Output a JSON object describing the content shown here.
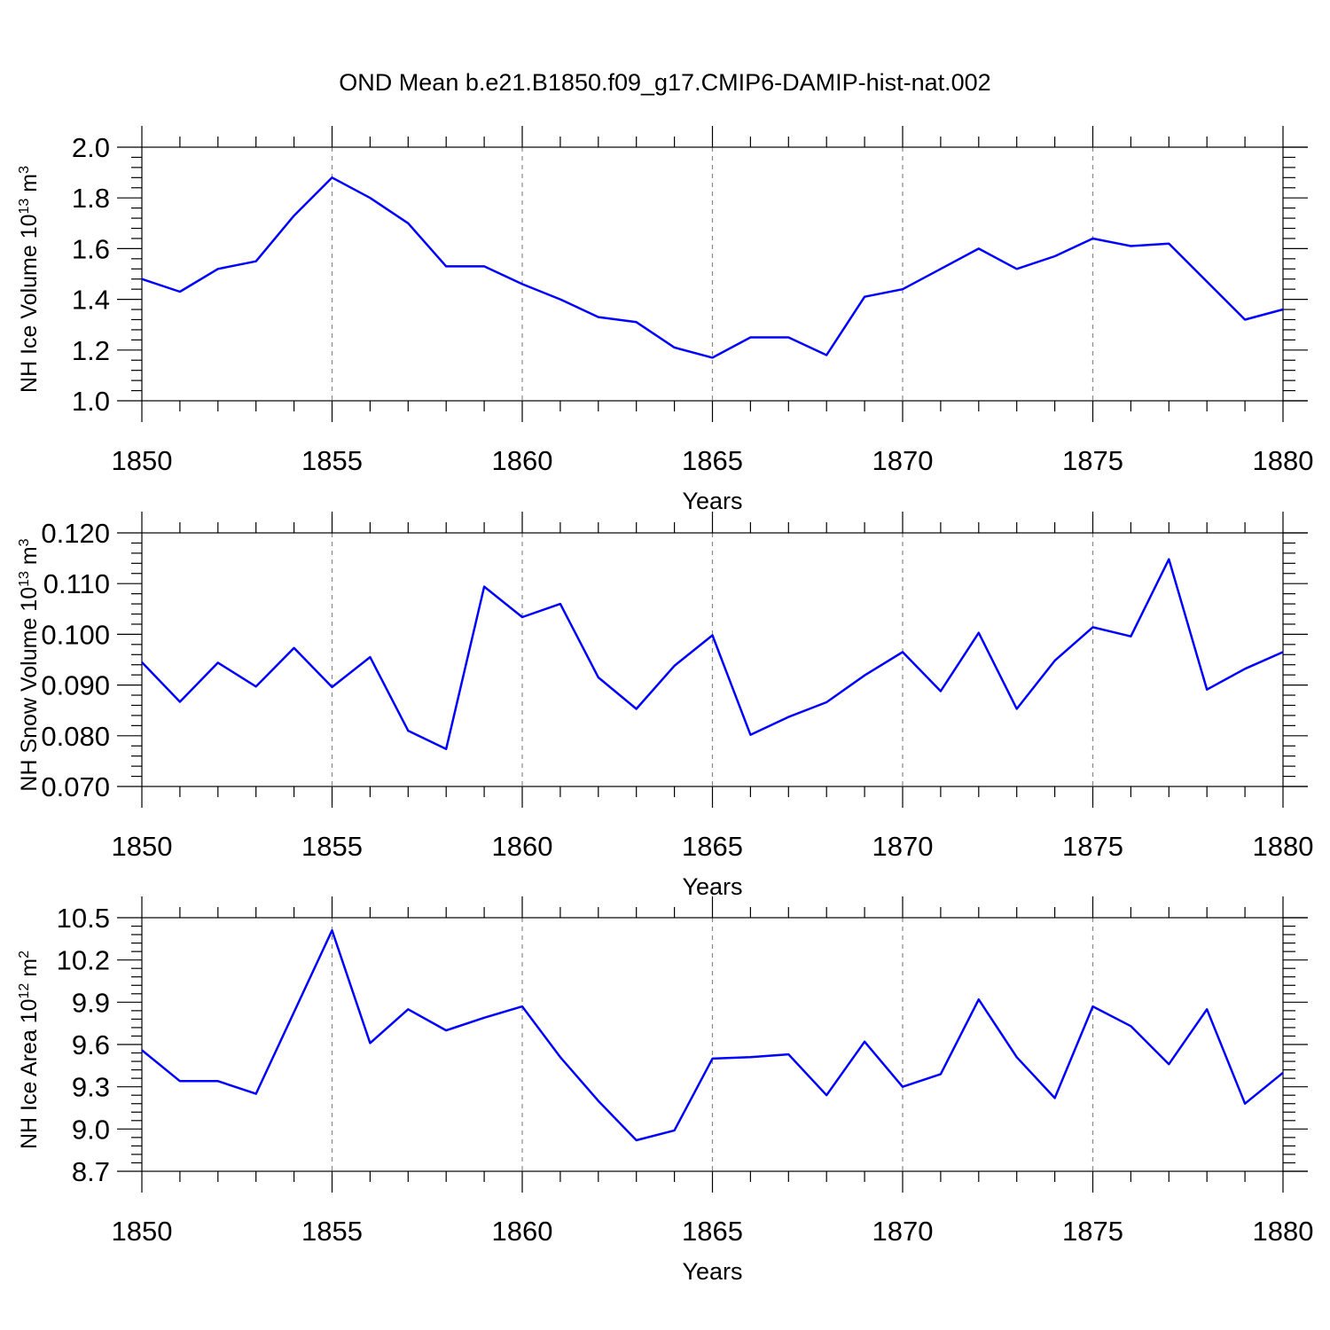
{
  "figure_title": "OND Mean b.e21.B1850.f09_g17.CMIP6-DAMIP-hist-nat.002",
  "colors": {
    "series": "#0000ff",
    "axis": "#000000",
    "grid": "#888888",
    "background": "#ffffff"
  },
  "chart_data": [
    {
      "type": "line",
      "title": "",
      "xlabel": "Years",
      "ylabel": "NH Ice Volume 10",
      "ylabel_exp1": "13",
      "ylabel_unit": " m",
      "ylabel_exp2": "3",
      "xlim": [
        1850,
        1880
      ],
      "ylim": [
        1.0,
        2.0
      ],
      "xticks": [
        "1850",
        "1855",
        "1860",
        "1865",
        "1870",
        "1875",
        "1880"
      ],
      "yticks": [
        "1.0",
        "1.2",
        "1.4",
        "1.6",
        "1.8",
        "2.0"
      ],
      "grid": "vertical dashed at major x ticks",
      "series": [
        {
          "x": [
            1850,
            1851,
            1852,
            1853,
            1854,
            1855,
            1856,
            1857,
            1858,
            1859,
            1860,
            1861,
            1862,
            1863,
            1864,
            1865,
            1866,
            1867,
            1868,
            1869,
            1870,
            1871,
            1872,
            1873,
            1874,
            1875,
            1876,
            1877,
            1878,
            1879,
            1880
          ],
          "values": [
            1.48,
            1.43,
            1.52,
            1.55,
            1.73,
            1.88,
            1.8,
            1.7,
            1.53,
            1.53,
            1.46,
            1.4,
            1.33,
            1.31,
            1.21,
            1.17,
            1.25,
            1.25,
            1.18,
            1.41,
            1.44,
            1.52,
            1.6,
            1.52,
            1.57,
            1.64,
            1.61,
            1.62,
            1.47,
            1.32,
            1.36
          ]
        }
      ]
    },
    {
      "type": "line",
      "title": "",
      "xlabel": "Years",
      "ylabel": "NH Snow Volume 10",
      "ylabel_exp1": "13",
      "ylabel_unit": " m",
      "ylabel_exp2": "3",
      "xlim": [
        1850,
        1880
      ],
      "ylim": [
        0.07,
        0.12
      ],
      "xticks": [
        "1850",
        "1855",
        "1860",
        "1865",
        "1870",
        "1875",
        "1880"
      ],
      "yticks": [
        "0.070",
        "0.080",
        "0.090",
        "0.100",
        "0.110",
        "0.120"
      ],
      "grid": "vertical dashed at major x ticks",
      "series": [
        {
          "x": [
            1850,
            1851,
            1852,
            1853,
            1854,
            1855,
            1856,
            1857,
            1858,
            1859,
            1860,
            1861,
            1862,
            1863,
            1864,
            1865,
            1866,
            1867,
            1868,
            1869,
            1870,
            1871,
            1872,
            1873,
            1874,
            1875,
            1876,
            1877,
            1878,
            1879,
            1880
          ],
          "values": [
            0.0945,
            0.0867,
            0.0944,
            0.0897,
            0.0973,
            0.0896,
            0.0955,
            0.081,
            0.0774,
            0.1094,
            0.1034,
            0.106,
            0.0915,
            0.0853,
            0.0938,
            0.0998,
            0.0802,
            0.0837,
            0.0866,
            0.0919,
            0.0965,
            0.0888,
            0.1003,
            0.0853,
            0.0948,
            0.1014,
            0.0996,
            0.1148,
            0.0891,
            0.0932,
            0.0965
          ]
        }
      ]
    },
    {
      "type": "line",
      "title": "",
      "xlabel": "Years",
      "ylabel": "NH Ice Area 10",
      "ylabel_exp1": "12",
      "ylabel_unit": " m",
      "ylabel_exp2": "2",
      "xlim": [
        1850,
        1880
      ],
      "ylim": [
        8.7,
        10.5
      ],
      "xticks": [
        "1850",
        "1855",
        "1860",
        "1865",
        "1870",
        "1875",
        "1880"
      ],
      "yticks": [
        "8.7",
        "9.0",
        "9.3",
        "9.6",
        "9.9",
        "10.2",
        "10.5"
      ],
      "grid": "vertical dashed at major x ticks",
      "series": [
        {
          "x": [
            1850,
            1851,
            1852,
            1853,
            1854,
            1855,
            1856,
            1857,
            1858,
            1859,
            1860,
            1861,
            1862,
            1863,
            1864,
            1865,
            1866,
            1867,
            1868,
            1869,
            1870,
            1871,
            1872,
            1873,
            1874,
            1875,
            1876,
            1877,
            1878,
            1879,
            1880
          ],
          "values": [
            9.56,
            9.34,
            9.34,
            9.25,
            9.83,
            10.41,
            9.61,
            9.85,
            9.7,
            9.79,
            9.87,
            9.51,
            9.2,
            8.92,
            8.99,
            9.5,
            9.51,
            9.53,
            9.24,
            9.62,
            9.3,
            9.39,
            9.92,
            9.51,
            9.22,
            9.87,
            9.73,
            9.46,
            9.85,
            9.18,
            9.4
          ]
        }
      ]
    }
  ]
}
